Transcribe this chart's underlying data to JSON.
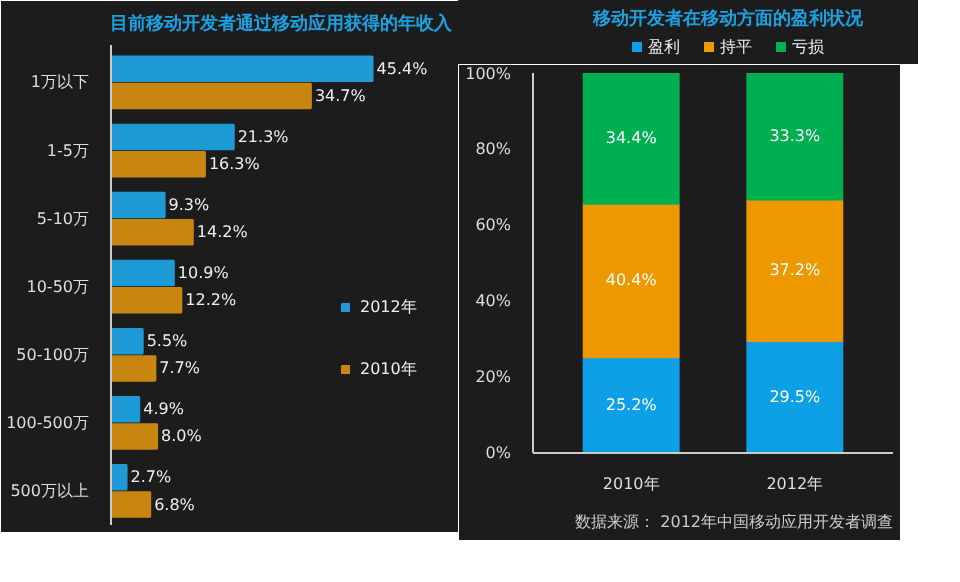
{
  "chart_data": [
    {
      "type": "bar",
      "orientation": "horizontal",
      "title": "目前移动开发者通过移动应用获得的年收入",
      "categories": [
        "1万以下",
        "1-5万",
        "5-10万",
        "10-50万",
        "50-100万",
        "100-500万",
        "500万以上"
      ],
      "series": [
        {
          "name": "2012年",
          "color": "#1e9ad6",
          "values": [
            45.4,
            21.3,
            9.3,
            10.9,
            5.5,
            4.9,
            2.7
          ],
          "value_labels": [
            "45.4%",
            "21.3%",
            "9.3%",
            "10.9%",
            "5.5%",
            "4.9%",
            "2.7%"
          ]
        },
        {
          "name": "2010年",
          "color": "#c8850f",
          "values": [
            34.7,
            16.3,
            14.2,
            12.2,
            7.7,
            8.0,
            6.8
          ],
          "value_labels": [
            "34.7%",
            "16.3%",
            "14.2%",
            "12.2%",
            "7.7%",
            "8.0%",
            "6.8%"
          ]
        }
      ],
      "legend": "right",
      "grid": false,
      "tick_labels": "y"
    },
    {
      "type": "bar",
      "stacked": true,
      "title": "移动开发者在移动方面的盈利状况",
      "categories": [
        "2010年",
        "2012年"
      ],
      "series": [
        {
          "name": "盈利",
          "color": "#0ea0e6",
          "values": [
            25.2,
            29.5
          ],
          "value_labels": [
            "25.2%",
            "29.5%"
          ]
        },
        {
          "name": "持平",
          "color": "#ee9800",
          "values": [
            40.4,
            37.2
          ],
          "value_labels": [
            "40.4%",
            "37.2%"
          ]
        },
        {
          "name": "亏损",
          "color": "#00b050",
          "values": [
            34.4,
            33.3
          ],
          "value_labels": [
            "34.4%",
            "33.3%"
          ]
        }
      ],
      "ylim": [
        0,
        100
      ],
      "yticks": [
        {
          "value": 0,
          "label": "0%"
        },
        {
          "value": 20,
          "label": "20%"
        },
        {
          "value": 40,
          "label": "40%"
        },
        {
          "value": 60,
          "label": "60%"
        },
        {
          "value": 80,
          "label": "80%"
        },
        {
          "value": 100,
          "label": "100%"
        }
      ],
      "legend": "top",
      "grid": false,
      "annotations": [
        "数据来源： 2012年中国移动应用开发者调查"
      ]
    }
  ]
}
